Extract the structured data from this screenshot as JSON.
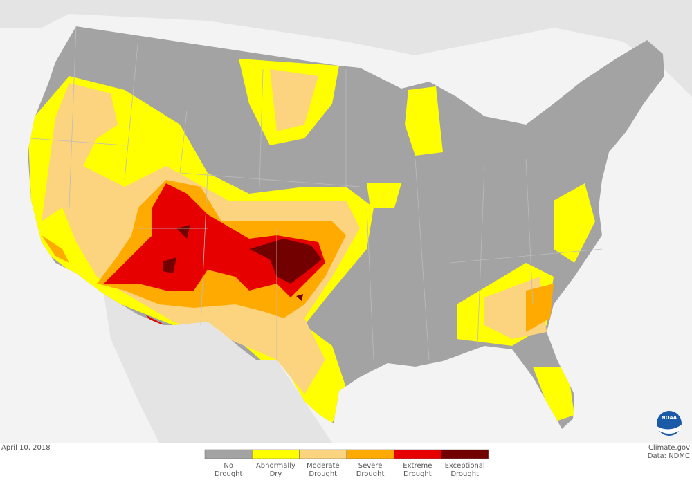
{
  "date": "April 10, 2018",
  "credit": {
    "source": "Climate.gov",
    "data": "Data: NDMC"
  },
  "logo": "NOAA",
  "legend": [
    {
      "lines": [
        "No",
        "Drought"
      ],
      "color": "#a3a3a3"
    },
    {
      "lines": [
        "Abnormally",
        "Dry"
      ],
      "color": "#ffff00"
    },
    {
      "lines": [
        "Moderate",
        "Drought"
      ],
      "color": "#fcd37f"
    },
    {
      "lines": [
        "Severe",
        "Drought"
      ],
      "color": "#ffaa00"
    },
    {
      "lines": [
        "Extreme",
        "Drought"
      ],
      "color": "#e60000"
    },
    {
      "lines": [
        "Exceptional",
        "Drought"
      ],
      "color": "#730000"
    }
  ]
}
